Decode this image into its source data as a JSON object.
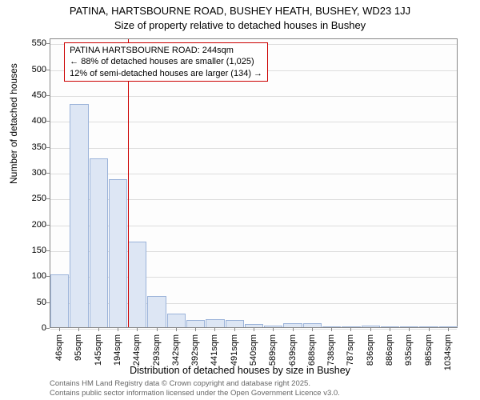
{
  "type": "histogram",
  "title_main": "PATINA, HARTSBOURNE ROAD, BUSHEY HEATH, BUSHEY, WD23 1JJ",
  "title_sub": "Size of property relative to detached houses in Bushey",
  "y_label": "Number of detached houses",
  "x_label": "Distribution of detached houses by size in Bushey",
  "footer1": "Contains HM Land Registry data © Crown copyright and database right 2025.",
  "footer2": "Contains public sector information licensed under the Open Government Licence v3.0.",
  "y_ticks": [
    0,
    50,
    100,
    150,
    200,
    250,
    300,
    350,
    400,
    450,
    500,
    550
  ],
  "y_max": 560,
  "x_categories": [
    "46sqm",
    "95sqm",
    "145sqm",
    "194sqm",
    "244sqm",
    "293sqm",
    "342sqm",
    "392sqm",
    "441sqm",
    "491sqm",
    "540sqm",
    "589sqm",
    "639sqm",
    "688sqm",
    "738sqm",
    "787sqm",
    "836sqm",
    "886sqm",
    "935sqm",
    "985sqm",
    "1034sqm"
  ],
  "bar_values": [
    102,
    432,
    326,
    286,
    165,
    60,
    26,
    14,
    16,
    14,
    6,
    3,
    8,
    7,
    0,
    0,
    3,
    0,
    0,
    0,
    0
  ],
  "bar_fill": "#dde6f4",
  "bar_stroke": "#9bb3d9",
  "grid_color": "#dddddd",
  "marker_index": 4,
  "marker_color": "#cc0000",
  "annotation": {
    "line1": "PATINA HARTSBOURNE ROAD: 244sqm",
    "line2": "← 88% of detached houses are smaller (1,025)",
    "line3": "12% of semi-detached houses are larger (134) →"
  },
  "background_color": "#ffffff",
  "title_fontsize": 13,
  "label_fontsize": 12,
  "tick_fontsize": 11
}
